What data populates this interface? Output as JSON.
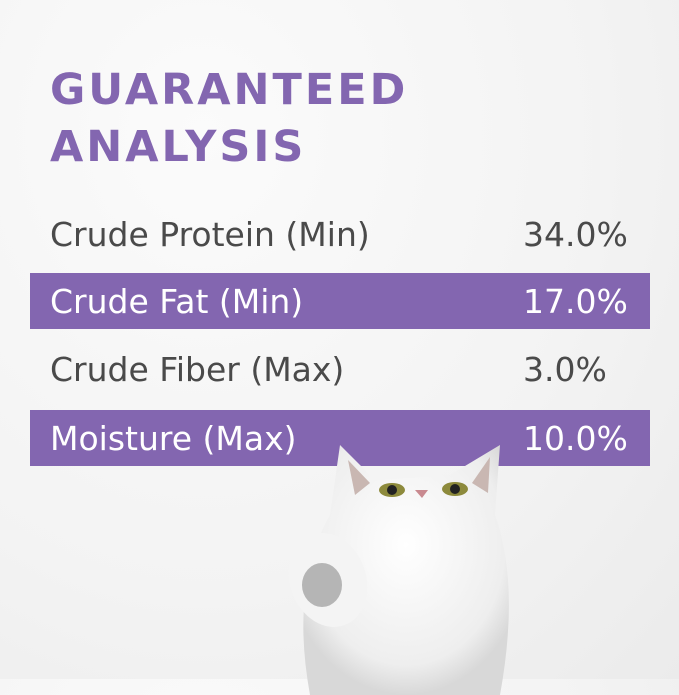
{
  "colors": {
    "accent": "#8366b0",
    "text": "#4a4a4a",
    "highlight_text": "#ffffff"
  },
  "title": {
    "line1": "GUARANTEED",
    "line2": "ANALYSIS"
  },
  "rows": [
    {
      "label": "Crude Protein (Min)",
      "value": "34.0%",
      "highlighted": false
    },
    {
      "label": "Crude Fat (Min)",
      "value": "17.0%",
      "highlighted": true
    },
    {
      "label": "Crude Fiber (Max)",
      "value": "3.0%",
      "highlighted": false
    },
    {
      "label": "Moisture (Max)",
      "value": "10.0%",
      "highlighted": true
    }
  ],
  "image": {
    "subject": "white-kitten-photo"
  }
}
